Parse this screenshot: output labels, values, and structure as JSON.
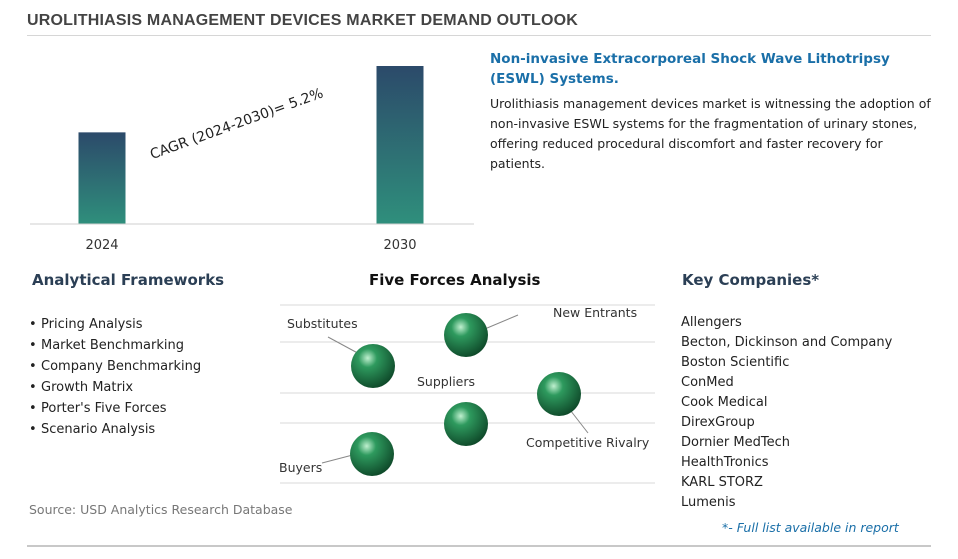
{
  "page": {
    "title": "UROLITHIASIS MANAGEMENT DEVICES MARKET DEMAND OUTLOOK",
    "source": "Source: USD Analytics Research Database"
  },
  "chart_data": {
    "type": "bar",
    "categories": [
      "2024",
      "2030"
    ],
    "values": [
      0.58,
      1.0
    ],
    "annotation": "CAGR (2024-2030)=  5.2%",
    "ylim": [
      0,
      1.0
    ],
    "grid": false,
    "colors": {
      "bar_top": "#2c4a6a",
      "bar_bottom": "#2f8f7c"
    }
  },
  "trend": {
    "title": "Non-invasive Extracorporeal Shock Wave Lithotripsy (ESWL) Systems.",
    "body": "Urolithiasis management devices market is witnessing the adoption of non-invasive ESWL systems for the fragmentation of urinary stones, offering reduced procedural discomfort and faster recovery for patients."
  },
  "frameworks": {
    "heading": "Analytical Frameworks",
    "items": [
      "Pricing Analysis",
      "Market Benchmarking",
      "Company Benchmarking",
      "Growth Matrix",
      "Porter's Five Forces",
      "Scenario Analysis"
    ]
  },
  "five_forces": {
    "heading": "Five Forces Analysis",
    "labels": {
      "substitutes": "Substitutes",
      "new_entrants": "New Entrants",
      "suppliers": "Suppliers",
      "competitive_rivalry": "Competitive Rivalry",
      "buyers": "Buyers"
    },
    "sphere_color": "#2e9a5e"
  },
  "companies": {
    "heading": "Key Companies*",
    "items": [
      "Allengers",
      "Becton, Dickinson and Company",
      "Boston Scientific",
      "ConMed",
      "Cook Medical",
      "DirexGroup",
      "Dornier MedTech",
      "HealthTronics",
      "KARL STORZ",
      "Lumenis"
    ],
    "note": "*- Full list available in report"
  }
}
